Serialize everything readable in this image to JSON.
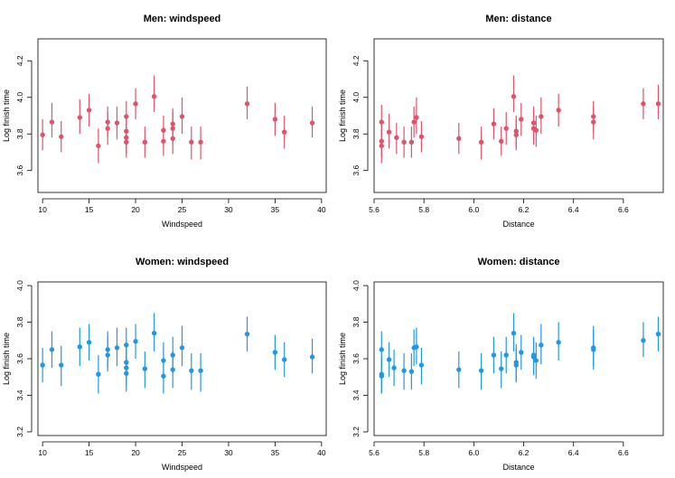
{
  "colors": {
    "men": "#df536b",
    "women": "#2297e6"
  },
  "chart_data": [
    {
      "type": "scatter",
      "id": "men-windspeed",
      "title": "Men: windspeed",
      "xlabel": "Windspeed",
      "ylabel": "Log finish time",
      "xlim": [
        9.5,
        40.5
      ],
      "ylim": [
        3.48,
        4.32
      ],
      "xticks": [
        10,
        15,
        20,
        25,
        30,
        35,
        40
      ],
      "yticks": [
        3.6,
        3.8,
        4.0,
        4.2
      ],
      "xtick_labels": [
        "10",
        "15",
        "20",
        "25",
        "30",
        "35",
        "40"
      ],
      "ytick_labels": [
        "3.6",
        "3.8",
        "4.0",
        "4.2"
      ],
      "color_key": "men",
      "points": [
        {
          "x": 10,
          "y": 3.795,
          "lo": 3.71,
          "hi": 3.88
        },
        {
          "x": 11,
          "y": 3.865,
          "lo": 3.78,
          "hi": 3.97
        },
        {
          "x": 12,
          "y": 3.785,
          "lo": 3.7,
          "hi": 3.87
        },
        {
          "x": 14,
          "y": 3.89,
          "lo": 3.8,
          "hi": 3.99
        },
        {
          "x": 15,
          "y": 3.93,
          "lo": 3.84,
          "hi": 4.02
        },
        {
          "x": 16,
          "y": 3.735,
          "lo": 3.64,
          "hi": 3.83
        },
        {
          "x": 17,
          "y": 3.83,
          "lo": 3.74,
          "hi": 3.92
        },
        {
          "x": 17,
          "y": 3.865,
          "lo": 3.78,
          "hi": 3.95
        },
        {
          "x": 18,
          "y": 3.86,
          "lo": 3.77,
          "hi": 3.95
        },
        {
          "x": 19,
          "y": 3.895,
          "lo": 3.81,
          "hi": 3.98
        },
        {
          "x": 19,
          "y": 3.815,
          "lo": 3.73,
          "hi": 3.9
        },
        {
          "x": 19,
          "y": 3.78,
          "lo": 3.69,
          "hi": 3.87
        },
        {
          "x": 19,
          "y": 3.755,
          "lo": 3.67,
          "hi": 3.84
        },
        {
          "x": 20,
          "y": 3.965,
          "lo": 3.88,
          "hi": 4.05
        },
        {
          "x": 21,
          "y": 3.755,
          "lo": 3.67,
          "hi": 3.84
        },
        {
          "x": 22,
          "y": 4.005,
          "lo": 3.92,
          "hi": 4.12
        },
        {
          "x": 23,
          "y": 3.82,
          "lo": 3.73,
          "hi": 3.9
        },
        {
          "x": 23,
          "y": 3.76,
          "lo": 3.68,
          "hi": 3.84
        },
        {
          "x": 24,
          "y": 3.855,
          "lo": 3.77,
          "hi": 3.94
        },
        {
          "x": 24,
          "y": 3.83,
          "lo": 3.74,
          "hi": 3.92
        },
        {
          "x": 24,
          "y": 3.775,
          "lo": 3.69,
          "hi": 3.86
        },
        {
          "x": 25,
          "y": 3.895,
          "lo": 3.8,
          "hi": 4.0
        },
        {
          "x": 26,
          "y": 3.755,
          "lo": 3.66,
          "hi": 3.84
        },
        {
          "x": 27,
          "y": 3.755,
          "lo": 3.66,
          "hi": 3.84
        },
        {
          "x": 32,
          "y": 3.965,
          "lo": 3.88,
          "hi": 4.06
        },
        {
          "x": 35,
          "y": 3.88,
          "lo": 3.79,
          "hi": 3.97
        },
        {
          "x": 36,
          "y": 3.81,
          "lo": 3.72,
          "hi": 3.9
        },
        {
          "x": 39,
          "y": 3.86,
          "lo": 3.78,
          "hi": 3.95
        }
      ]
    },
    {
      "type": "scatter",
      "id": "men-distance",
      "title": "Men: distance",
      "xlabel": "Distance",
      "ylabel": "Log finish time",
      "xlim": [
        5.6,
        6.76
      ],
      "ylim": [
        3.48,
        4.32
      ],
      "xticks": [
        5.6,
        5.8,
        6.0,
        6.2,
        6.4,
        6.6
      ],
      "yticks": [
        3.6,
        3.8,
        4.0,
        4.2
      ],
      "xtick_labels": [
        "5.6",
        "5.8",
        "6.0",
        "6.2",
        "6.4",
        "6.6"
      ],
      "ytick_labels": [
        "3.6",
        "3.8",
        "4.0",
        "4.2"
      ],
      "color_key": "men",
      "points": [
        {
          "x": 5.63,
          "y": 3.865,
          "lo": 3.78,
          "hi": 3.96
        },
        {
          "x": 5.63,
          "y": 3.76,
          "lo": 3.67,
          "hi": 3.85
        },
        {
          "x": 5.63,
          "y": 3.735,
          "lo": 3.64,
          "hi": 3.83
        },
        {
          "x": 5.66,
          "y": 3.81,
          "lo": 3.72,
          "hi": 3.91
        },
        {
          "x": 5.69,
          "y": 3.78,
          "lo": 3.69,
          "hi": 3.86
        },
        {
          "x": 5.72,
          "y": 3.755,
          "lo": 3.67,
          "hi": 3.84
        },
        {
          "x": 5.75,
          "y": 3.755,
          "lo": 3.67,
          "hi": 3.84
        },
        {
          "x": 5.76,
          "y": 3.865,
          "lo": 3.78,
          "hi": 3.95
        },
        {
          "x": 5.77,
          "y": 3.89,
          "lo": 3.8,
          "hi": 4.0
        },
        {
          "x": 5.79,
          "y": 3.785,
          "lo": 3.7,
          "hi": 3.87
        },
        {
          "x": 5.94,
          "y": 3.775,
          "lo": 3.69,
          "hi": 3.86
        },
        {
          "x": 6.03,
          "y": 3.755,
          "lo": 3.66,
          "hi": 3.84
        },
        {
          "x": 6.08,
          "y": 3.855,
          "lo": 3.77,
          "hi": 3.94
        },
        {
          "x": 6.11,
          "y": 3.76,
          "lo": 3.68,
          "hi": 3.84
        },
        {
          "x": 6.13,
          "y": 3.83,
          "lo": 3.74,
          "hi": 3.92
        },
        {
          "x": 6.16,
          "y": 4.005,
          "lo": 3.92,
          "hi": 4.12
        },
        {
          "x": 6.17,
          "y": 3.815,
          "lo": 3.73,
          "hi": 3.9
        },
        {
          "x": 6.17,
          "y": 3.795,
          "lo": 3.71,
          "hi": 3.88
        },
        {
          "x": 6.19,
          "y": 3.88,
          "lo": 3.79,
          "hi": 3.97
        },
        {
          "x": 6.24,
          "y": 3.86,
          "lo": 3.77,
          "hi": 3.95
        },
        {
          "x": 6.24,
          "y": 3.83,
          "lo": 3.74,
          "hi": 3.92
        },
        {
          "x": 6.25,
          "y": 3.82,
          "lo": 3.73,
          "hi": 3.9
        },
        {
          "x": 6.27,
          "y": 3.895,
          "lo": 3.8,
          "hi": 4.0
        },
        {
          "x": 6.34,
          "y": 3.93,
          "lo": 3.84,
          "hi": 4.02
        },
        {
          "x": 6.48,
          "y": 3.895,
          "lo": 3.81,
          "hi": 3.98
        },
        {
          "x": 6.48,
          "y": 3.865,
          "lo": 3.77,
          "hi": 3.95
        },
        {
          "x": 6.68,
          "y": 3.965,
          "lo": 3.88,
          "hi": 4.05
        },
        {
          "x": 6.74,
          "y": 3.965,
          "lo": 3.88,
          "hi": 4.07
        }
      ]
    },
    {
      "type": "scatter",
      "id": "women-windspeed",
      "title": "Women: windspeed",
      "xlabel": "Windspeed",
      "ylabel": "Log finish time",
      "xlim": [
        9.5,
        40.5
      ],
      "ylim": [
        3.18,
        4.02
      ],
      "xticks": [
        10,
        15,
        20,
        25,
        30,
        35,
        40
      ],
      "yticks": [
        3.2,
        3.4,
        3.6,
        3.8,
        4.0
      ],
      "xtick_labels": [
        "10",
        "15",
        "20",
        "25",
        "30",
        "35",
        "40"
      ],
      "ytick_labels": [
        "3.2",
        "3.4",
        "3.6",
        "3.8",
        "4.0"
      ],
      "color_key": "women",
      "points": [
        {
          "x": 10,
          "y": 3.565,
          "lo": 3.47,
          "hi": 3.66
        },
        {
          "x": 11,
          "y": 3.65,
          "lo": 3.55,
          "hi": 3.75
        },
        {
          "x": 12,
          "y": 3.565,
          "lo": 3.45,
          "hi": 3.67
        },
        {
          "x": 14,
          "y": 3.665,
          "lo": 3.56,
          "hi": 3.77
        },
        {
          "x": 15,
          "y": 3.69,
          "lo": 3.59,
          "hi": 3.79
        },
        {
          "x": 16,
          "y": 3.515,
          "lo": 3.41,
          "hi": 3.62
        },
        {
          "x": 17,
          "y": 3.65,
          "lo": 3.55,
          "hi": 3.75
        },
        {
          "x": 17,
          "y": 3.62,
          "lo": 3.53,
          "hi": 3.72
        },
        {
          "x": 18,
          "y": 3.66,
          "lo": 3.56,
          "hi": 3.77
        },
        {
          "x": 19,
          "y": 3.675,
          "lo": 3.58,
          "hi": 3.77
        },
        {
          "x": 19,
          "y": 3.58,
          "lo": 3.48,
          "hi": 3.68
        },
        {
          "x": 19,
          "y": 3.55,
          "lo": 3.45,
          "hi": 3.65
        },
        {
          "x": 19,
          "y": 3.52,
          "lo": 3.42,
          "hi": 3.62
        },
        {
          "x": 20,
          "y": 3.695,
          "lo": 3.6,
          "hi": 3.79
        },
        {
          "x": 21,
          "y": 3.545,
          "lo": 3.44,
          "hi": 3.64
        },
        {
          "x": 22,
          "y": 3.74,
          "lo": 3.64,
          "hi": 3.85
        },
        {
          "x": 23,
          "y": 3.59,
          "lo": 3.49,
          "hi": 3.69
        },
        {
          "x": 23,
          "y": 3.505,
          "lo": 3.41,
          "hi": 3.6
        },
        {
          "x": 24,
          "y": 3.62,
          "lo": 3.52,
          "hi": 3.72
        },
        {
          "x": 24,
          "y": 3.54,
          "lo": 3.44,
          "hi": 3.64
        },
        {
          "x": 25,
          "y": 3.66,
          "lo": 3.56,
          "hi": 3.78
        },
        {
          "x": 26,
          "y": 3.535,
          "lo": 3.43,
          "hi": 3.63
        },
        {
          "x": 27,
          "y": 3.535,
          "lo": 3.42,
          "hi": 3.63
        },
        {
          "x": 32,
          "y": 3.735,
          "lo": 3.64,
          "hi": 3.83
        },
        {
          "x": 35,
          "y": 3.635,
          "lo": 3.54,
          "hi": 3.73
        },
        {
          "x": 36,
          "y": 3.595,
          "lo": 3.5,
          "hi": 3.69
        },
        {
          "x": 39,
          "y": 3.61,
          "lo": 3.52,
          "hi": 3.71
        }
      ]
    },
    {
      "type": "scatter",
      "id": "women-distance",
      "title": "Women: distance",
      "xlabel": "Distance",
      "ylabel": "Log finish time",
      "xlim": [
        5.6,
        6.76
      ],
      "ylim": [
        3.18,
        4.02
      ],
      "xticks": [
        5.6,
        5.8,
        6.0,
        6.2,
        6.4,
        6.6
      ],
      "yticks": [
        3.2,
        3.4,
        3.6,
        3.8,
        4.0
      ],
      "xtick_labels": [
        "5.6",
        "5.8",
        "6.0",
        "6.2",
        "6.4",
        "6.6"
      ],
      "ytick_labels": [
        "3.2",
        "3.4",
        "3.6",
        "3.8",
        "4.0"
      ],
      "color_key": "women",
      "points": [
        {
          "x": 5.63,
          "y": 3.65,
          "lo": 3.55,
          "hi": 3.75
        },
        {
          "x": 5.63,
          "y": 3.515,
          "lo": 3.41,
          "hi": 3.62
        },
        {
          "x": 5.63,
          "y": 3.505,
          "lo": 3.41,
          "hi": 3.6
        },
        {
          "x": 5.66,
          "y": 3.595,
          "lo": 3.5,
          "hi": 3.69
        },
        {
          "x": 5.68,
          "y": 3.55,
          "lo": 3.45,
          "hi": 3.65
        },
        {
          "x": 5.72,
          "y": 3.535,
          "lo": 3.43,
          "hi": 3.63
        },
        {
          "x": 5.75,
          "y": 3.53,
          "lo": 3.43,
          "hi": 3.63
        },
        {
          "x": 5.76,
          "y": 3.66,
          "lo": 3.56,
          "hi": 3.76
        },
        {
          "x": 5.77,
          "y": 3.665,
          "lo": 3.57,
          "hi": 3.77
        },
        {
          "x": 5.79,
          "y": 3.565,
          "lo": 3.46,
          "hi": 3.66
        },
        {
          "x": 5.94,
          "y": 3.54,
          "lo": 3.44,
          "hi": 3.64
        },
        {
          "x": 6.03,
          "y": 3.535,
          "lo": 3.43,
          "hi": 3.63
        },
        {
          "x": 6.08,
          "y": 3.62,
          "lo": 3.52,
          "hi": 3.72
        },
        {
          "x": 6.11,
          "y": 3.545,
          "lo": 3.44,
          "hi": 3.64
        },
        {
          "x": 6.13,
          "y": 3.62,
          "lo": 3.52,
          "hi": 3.72
        },
        {
          "x": 6.16,
          "y": 3.74,
          "lo": 3.64,
          "hi": 3.85
        },
        {
          "x": 6.17,
          "y": 3.58,
          "lo": 3.48,
          "hi": 3.68
        },
        {
          "x": 6.17,
          "y": 3.565,
          "lo": 3.47,
          "hi": 3.66
        },
        {
          "x": 6.19,
          "y": 3.635,
          "lo": 3.54,
          "hi": 3.73
        },
        {
          "x": 6.24,
          "y": 3.62,
          "lo": 3.52,
          "hi": 3.72
        },
        {
          "x": 6.24,
          "y": 3.61,
          "lo": 3.51,
          "hi": 3.71
        },
        {
          "x": 6.25,
          "y": 3.59,
          "lo": 3.49,
          "hi": 3.69
        },
        {
          "x": 6.27,
          "y": 3.675,
          "lo": 3.57,
          "hi": 3.79
        },
        {
          "x": 6.34,
          "y": 3.69,
          "lo": 3.59,
          "hi": 3.8
        },
        {
          "x": 6.48,
          "y": 3.66,
          "lo": 3.56,
          "hi": 3.78
        },
        {
          "x": 6.48,
          "y": 3.65,
          "lo": 3.54,
          "hi": 3.76
        },
        {
          "x": 6.68,
          "y": 3.7,
          "lo": 3.61,
          "hi": 3.8
        },
        {
          "x": 6.74,
          "y": 3.735,
          "lo": 3.64,
          "hi": 3.83
        }
      ]
    }
  ]
}
